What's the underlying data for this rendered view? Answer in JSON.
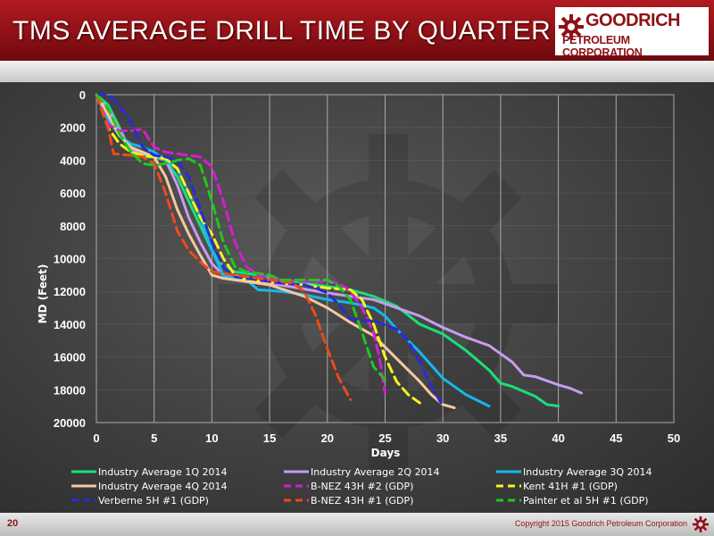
{
  "header": {
    "title": "TMS AVERAGE DRILL TIME BY QUARTER",
    "logo_name": "GOODRICH",
    "logo_sub": "PETROLEUM CORPORATION",
    "logo_icon": "gear-icon"
  },
  "footer": {
    "page_number": "20",
    "copyright": "Copyright 2015 Goodrich Petroleum Corporation",
    "icon": "gear-icon"
  },
  "colors": {
    "header_red": "#8e1116",
    "background": "#3e3e3e"
  },
  "chart_data": {
    "type": "line",
    "title": "",
    "xlabel": "Days",
    "ylabel": "MD (Feet)",
    "xlim": [
      0,
      50
    ],
    "ylim": [
      0,
      20000
    ],
    "y_inverted": true,
    "x_ticks": [
      "0",
      "5",
      "10",
      "15",
      "20",
      "25",
      "30",
      "35",
      "40",
      "45",
      "50"
    ],
    "y_ticks": [
      "0",
      "2000",
      "4000",
      "6000",
      "8000",
      "10000",
      "12000",
      "14000",
      "16000",
      "18000",
      "20000"
    ],
    "grid": true,
    "legend_position": "bottom",
    "series": [
      {
        "name": "Industry Average 1Q 2014",
        "color": "#19e07a",
        "style": "solid",
        "points": [
          [
            0,
            0
          ],
          [
            1,
            600
          ],
          [
            2,
            2000
          ],
          [
            3,
            3500
          ],
          [
            4,
            3800
          ],
          [
            5,
            3800
          ],
          [
            6,
            4000
          ],
          [
            7,
            5000
          ],
          [
            8,
            6500
          ],
          [
            9,
            8000
          ],
          [
            10,
            9500
          ],
          [
            11,
            10500
          ],
          [
            12,
            10800
          ],
          [
            14,
            11000
          ],
          [
            16,
            11300
          ],
          [
            18,
            11500
          ],
          [
            20,
            11700
          ],
          [
            22,
            11900
          ],
          [
            24,
            12300
          ],
          [
            26,
            12900
          ],
          [
            28,
            14000
          ],
          [
            30,
            14600
          ],
          [
            32,
            15600
          ],
          [
            34,
            16800
          ],
          [
            35,
            17600
          ],
          [
            36,
            17800
          ],
          [
            38,
            18400
          ],
          [
            39,
            18900
          ],
          [
            40,
            19000
          ]
        ]
      },
      {
        "name": "Industry Average 2Q 2014",
        "color": "#c79cf0",
        "style": "solid",
        "points": [
          [
            0,
            0
          ],
          [
            1,
            800
          ],
          [
            2,
            2200
          ],
          [
            3,
            3300
          ],
          [
            4,
            3600
          ],
          [
            5,
            3700
          ],
          [
            6,
            4000
          ],
          [
            7,
            5500
          ],
          [
            8,
            7500
          ],
          [
            9,
            9000
          ],
          [
            10,
            10300
          ],
          [
            11,
            11000
          ],
          [
            12,
            11200
          ],
          [
            15,
            11500
          ],
          [
            20,
            12100
          ],
          [
            24,
            12500
          ],
          [
            26,
            13000
          ],
          [
            28,
            13500
          ],
          [
            30,
            14200
          ],
          [
            32,
            14800
          ],
          [
            34,
            15300
          ],
          [
            36,
            16300
          ],
          [
            37,
            17100
          ],
          [
            38,
            17200
          ],
          [
            40,
            17700
          ],
          [
            41,
            17900
          ],
          [
            42,
            18200
          ]
        ]
      },
      {
        "name": "Industry Average 3Q 2014",
        "color": "#14b8ee",
        "style": "solid",
        "points": [
          [
            0,
            0
          ],
          [
            1,
            1500
          ],
          [
            2,
            2500
          ],
          [
            3,
            3000
          ],
          [
            4,
            3200
          ],
          [
            5,
            3500
          ],
          [
            6,
            4000
          ],
          [
            7,
            4500
          ],
          [
            8,
            6000
          ],
          [
            9,
            7500
          ],
          [
            10,
            9500
          ],
          [
            11,
            11000
          ],
          [
            12,
            11200
          ],
          [
            13,
            11300
          ],
          [
            14,
            11900
          ],
          [
            16,
            12000
          ],
          [
            18,
            12200
          ],
          [
            20,
            12500
          ],
          [
            22,
            12700
          ],
          [
            24,
            13000
          ],
          [
            25,
            13500
          ],
          [
            26,
            14300
          ],
          [
            28,
            15700
          ],
          [
            30,
            17300
          ],
          [
            32,
            18300
          ],
          [
            34,
            19000
          ]
        ]
      },
      {
        "name": "Industry Average 4Q 2014",
        "color": "#f6c8a0",
        "style": "solid",
        "points": [
          [
            0,
            0
          ],
          [
            1,
            1200
          ],
          [
            2,
            2500
          ],
          [
            3,
            3200
          ],
          [
            4,
            3500
          ],
          [
            5,
            3800
          ],
          [
            6,
            5000
          ],
          [
            7,
            7000
          ],
          [
            8,
            8500
          ],
          [
            9,
            9800
          ],
          [
            10,
            11000
          ],
          [
            11,
            11200
          ],
          [
            12,
            11300
          ],
          [
            15,
            11600
          ],
          [
            18,
            12300
          ],
          [
            20,
            13000
          ],
          [
            22,
            13900
          ],
          [
            24,
            14700
          ],
          [
            26,
            16100
          ],
          [
            28,
            17500
          ],
          [
            29,
            18300
          ],
          [
            30,
            18900
          ],
          [
            31,
            19100
          ]
        ]
      },
      {
        "name": "B-NEZ 43H #2 (GDP)",
        "color": "#d21fd2",
        "style": "dashed",
        "points": [
          [
            0,
            0
          ],
          [
            1,
            1800
          ],
          [
            2,
            2200
          ],
          [
            3,
            2200
          ],
          [
            4,
            2100
          ],
          [
            5,
            3200
          ],
          [
            6,
            3500
          ],
          [
            7,
            3600
          ],
          [
            8,
            3700
          ],
          [
            9,
            3800
          ],
          [
            10,
            4400
          ],
          [
            11,
            6500
          ],
          [
            12,
            9000
          ],
          [
            13,
            10500
          ],
          [
            14,
            11000
          ],
          [
            15,
            11200
          ],
          [
            16,
            11300
          ],
          [
            18,
            11400
          ],
          [
            19,
            11400
          ],
          [
            20,
            11400
          ],
          [
            21,
            11500
          ],
          [
            22,
            12000
          ],
          [
            23,
            13000
          ],
          [
            24,
            14500
          ],
          [
            24.5,
            16000
          ],
          [
            25,
            18200
          ]
        ]
      },
      {
        "name": "Kent 41H #1 (GDP)",
        "color": "#f5f51e",
        "style": "dashed",
        "points": [
          [
            0,
            0
          ],
          [
            1,
            2000
          ],
          [
            2,
            3000
          ],
          [
            3,
            3500
          ],
          [
            4,
            3700
          ],
          [
            5,
            3800
          ],
          [
            6,
            3900
          ],
          [
            7,
            4500
          ],
          [
            8,
            6000
          ],
          [
            9,
            7500
          ],
          [
            10,
            8500
          ],
          [
            11,
            10000
          ],
          [
            12,
            11000
          ],
          [
            13,
            11300
          ],
          [
            16,
            11500
          ],
          [
            18,
            11600
          ],
          [
            20,
            11800
          ],
          [
            22,
            11900
          ],
          [
            23,
            12500
          ],
          [
            24,
            14000
          ],
          [
            25,
            16000
          ],
          [
            26,
            17500
          ],
          [
            27,
            18300
          ],
          [
            28,
            18800
          ]
        ]
      },
      {
        "name": "Verberne 5H #1 (GDP)",
        "color": "#2a2ad8",
        "style": "dashed",
        "points": [
          [
            0,
            0
          ],
          [
            1,
            0
          ],
          [
            2,
            600
          ],
          [
            3,
            1700
          ],
          [
            4,
            3200
          ],
          [
            5,
            3700
          ],
          [
            6,
            3800
          ],
          [
            7,
            4000
          ],
          [
            8,
            5000
          ],
          [
            9,
            7000
          ],
          [
            10,
            9000
          ],
          [
            11,
            10500
          ],
          [
            12,
            11100
          ],
          [
            14,
            11300
          ],
          [
            16,
            11500
          ],
          [
            18,
            11600
          ],
          [
            19,
            11800
          ],
          [
            20,
            12100
          ],
          [
            21,
            12800
          ],
          [
            22,
            13700
          ],
          [
            24,
            13800
          ],
          [
            26,
            14300
          ],
          [
            27,
            15000
          ],
          [
            28,
            16300
          ],
          [
            29,
            17800
          ],
          [
            30,
            19000
          ]
        ]
      },
      {
        "name": "B-NEZ 43H #1 (GDP)",
        "color": "#ee4a1a",
        "style": "dashed",
        "points": [
          [
            0,
            0
          ],
          [
            1,
            2000
          ],
          [
            1.5,
            3600
          ],
          [
            3,
            3700
          ],
          [
            4,
            3800
          ],
          [
            5,
            4200
          ],
          [
            6,
            6000
          ],
          [
            7,
            8300
          ],
          [
            8,
            9500
          ],
          [
            9,
            10200
          ],
          [
            10,
            10800
          ],
          [
            11,
            10900
          ],
          [
            12,
            11000
          ],
          [
            14,
            11200
          ],
          [
            16,
            11400
          ],
          [
            17,
            11500
          ],
          [
            18,
            12000
          ],
          [
            19,
            13500
          ],
          [
            20,
            15500
          ],
          [
            21,
            17300
          ],
          [
            22,
            18600
          ]
        ]
      },
      {
        "name": "Painter et al 5H #1 (GDP)",
        "color": "#1ec81e",
        "style": "dashed",
        "points": [
          [
            0,
            0
          ],
          [
            1,
            800
          ],
          [
            2,
            2400
          ],
          [
            3,
            3500
          ],
          [
            4,
            4200
          ],
          [
            5,
            4300
          ],
          [
            6,
            4200
          ],
          [
            7,
            4000
          ],
          [
            8,
            3900
          ],
          [
            9,
            4300
          ],
          [
            10,
            6500
          ],
          [
            11,
            9000
          ],
          [
            12,
            10500
          ],
          [
            13,
            10800
          ],
          [
            14,
            10900
          ],
          [
            15,
            11000
          ],
          [
            16,
            11300
          ],
          [
            20,
            11300
          ],
          [
            21,
            11700
          ],
          [
            22,
            12500
          ],
          [
            23,
            14500
          ],
          [
            24,
            16600
          ],
          [
            25,
            17400
          ]
        ]
      }
    ]
  }
}
